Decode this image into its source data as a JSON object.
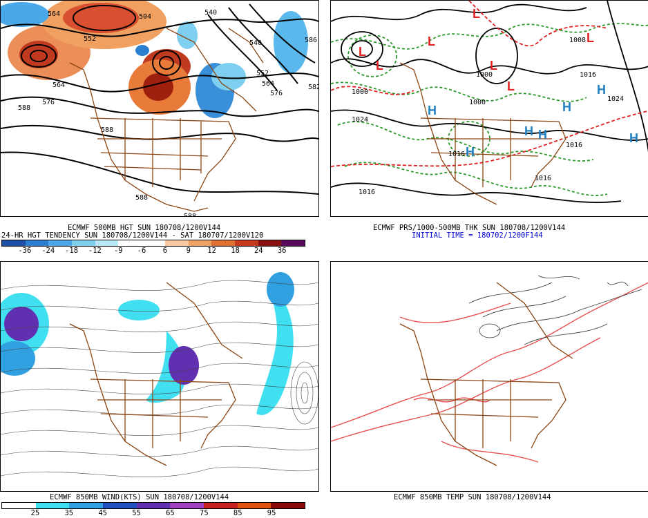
{
  "panel_tl": {
    "caption_line1": "ECMWF 500MB HGT SUN 180708/1200V144",
    "caption_line2": "24-HR HGT TENDENCY SUN 180708/1200V144 - SAT 180707/1200V120",
    "colorbar_labels": [
      "-36",
      "-24",
      "-18",
      "-12",
      "-9",
      "-6",
      "6",
      "9",
      "12",
      "18",
      "24",
      "36"
    ],
    "colorbar_colors": [
      "#1f4fa8",
      "#2a7fd0",
      "#4aa8e8",
      "#7fd0f0",
      "#b8e8f8",
      "#ffffff",
      "#ffffff",
      "#f8c8a0",
      "#f0a060",
      "#e07030",
      "#c03a20",
      "#8a1010",
      "#5a0a5a"
    ],
    "contour_labels": [
      "540",
      "564",
      "552",
      "504",
      "564",
      "540",
      "576",
      "588",
      "588",
      "564",
      "552",
      "564",
      "576",
      "588",
      "588",
      "588",
      "586",
      "582"
    ]
  },
  "panel_tr": {
    "caption_line1": "ECMWF PRS/1000-500MB THK SUN 180708/1200V144",
    "caption_line2": "INITIAL TIME = 180702/1200F144",
    "pressure_labels": [
      "1000",
      "1016",
      "1024",
      "1000",
      "1000",
      "1016",
      "1024",
      "1016",
      "1016",
      "1016",
      "1008"
    ]
  },
  "panel_bl": {
    "caption_line1": "ECMWF 850MB WIND(KTS) SUN 180708/1200V144",
    "colorbar_labels": [
      "25",
      "35",
      "45",
      "55",
      "65",
      "75",
      "85",
      "95"
    ],
    "colorbar_colors": [
      "#ffffff",
      "#40e0f0",
      "#30a0e0",
      "#2050c0",
      "#6030b0",
      "#a040c0",
      "#c82020",
      "#e05010",
      "#8a0a0a"
    ]
  },
  "panel_br": {
    "caption_line1": "ECMWF 850MB TEMP SUN 180708/1200V144"
  },
  "colors": {
    "border_brown": "#8b4513",
    "contour_black": "#000000",
    "thickness_green": "#2a9a2a",
    "thickness_red": "#e02020",
    "high_blue": "#2080c0",
    "low_red": "#e02020"
  }
}
